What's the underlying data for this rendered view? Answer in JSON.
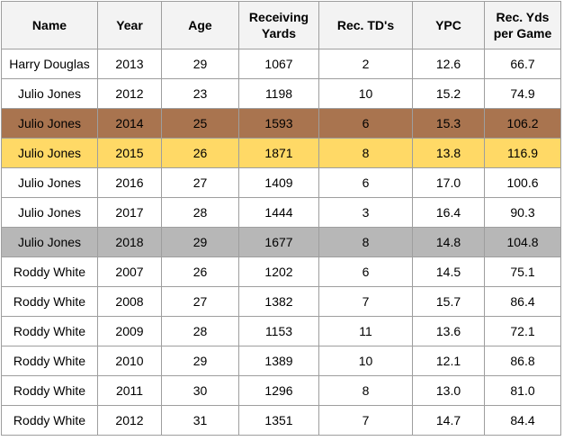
{
  "columns": [
    "Name",
    "Year",
    "Age",
    "Receiving Yards",
    "Rec. TD's",
    "YPC",
    "Rec. Yds per Game"
  ],
  "colors": {
    "header_bg": "#f3f3f3",
    "border": "#9e9e9e",
    "highlight_2014": "#a9744f",
    "highlight_2015": "#ffd966",
    "highlight_2018": "#b7b7b7"
  },
  "rows": [
    {
      "name": "Harry Douglas",
      "year": "2013",
      "age": "29",
      "yards": "1067",
      "tds": "2",
      "ypc": "12.6",
      "ypg": "66.7",
      "highlight": ""
    },
    {
      "name": "Julio Jones",
      "year": "2012",
      "age": "23",
      "yards": "1198",
      "tds": "10",
      "ypc": "15.2",
      "ypg": "74.9",
      "highlight": ""
    },
    {
      "name": "Julio Jones",
      "year": "2014",
      "age": "25",
      "yards": "1593",
      "tds": "6",
      "ypc": "15.3",
      "ypg": "106.2",
      "highlight": "brown"
    },
    {
      "name": "Julio Jones",
      "year": "2015",
      "age": "26",
      "yards": "1871",
      "tds": "8",
      "ypc": "13.8",
      "ypg": "116.9",
      "highlight": "gold"
    },
    {
      "name": "Julio Jones",
      "year": "2016",
      "age": "27",
      "yards": "1409",
      "tds": "6",
      "ypc": "17.0",
      "ypg": "100.6",
      "highlight": ""
    },
    {
      "name": "Julio Jones",
      "year": "2017",
      "age": "28",
      "yards": "1444",
      "tds": "3",
      "ypc": "16.4",
      "ypg": "90.3",
      "highlight": ""
    },
    {
      "name": "Julio Jones",
      "year": "2018",
      "age": "29",
      "yards": "1677",
      "tds": "8",
      "ypc": "14.8",
      "ypg": "104.8",
      "highlight": "gray"
    },
    {
      "name": "Roddy White",
      "year": "2007",
      "age": "26",
      "yards": "1202",
      "tds": "6",
      "ypc": "14.5",
      "ypg": "75.1",
      "highlight": ""
    },
    {
      "name": "Roddy White",
      "year": "2008",
      "age": "27",
      "yards": "1382",
      "tds": "7",
      "ypc": "15.7",
      "ypg": "86.4",
      "highlight": ""
    },
    {
      "name": "Roddy White",
      "year": "2009",
      "age": "28",
      "yards": "1153",
      "tds": "11",
      "ypc": "13.6",
      "ypg": "72.1",
      "highlight": ""
    },
    {
      "name": "Roddy White",
      "year": "2010",
      "age": "29",
      "yards": "1389",
      "tds": "10",
      "ypc": "12.1",
      "ypg": "86.8",
      "highlight": ""
    },
    {
      "name": "Roddy White",
      "year": "2011",
      "age": "30",
      "yards": "1296",
      "tds": "8",
      "ypc": "13.0",
      "ypg": "81.0",
      "highlight": ""
    },
    {
      "name": "Roddy White",
      "year": "2012",
      "age": "31",
      "yards": "1351",
      "tds": "7",
      "ypc": "14.7",
      "ypg": "84.4",
      "highlight": ""
    }
  ]
}
